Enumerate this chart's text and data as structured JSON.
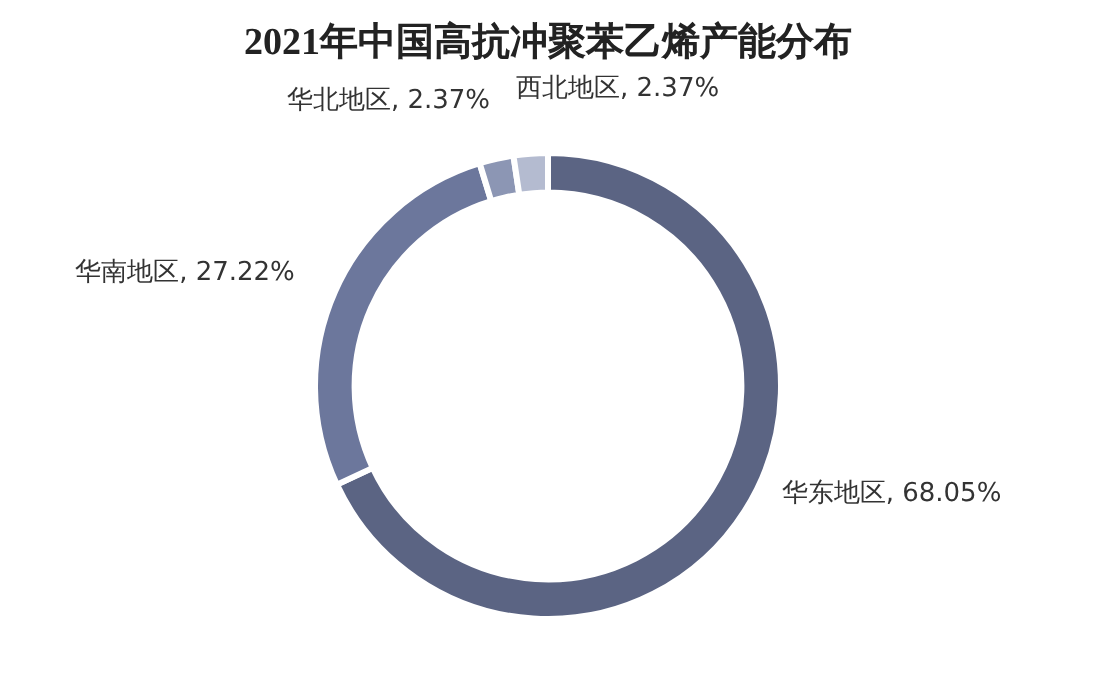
{
  "chart_data": {
    "type": "donut",
    "title": "2021年中国高抗冲聚苯乙烯产能分布",
    "categories": [
      "华东地区",
      "华南地区",
      "华北地区",
      "西北地区"
    ],
    "values": [
      68.05,
      27.22,
      2.37,
      2.37
    ],
    "value_labels": [
      "68.05%",
      "27.22%",
      "2.37%",
      "2.37%"
    ],
    "colors": [
      "#5b6483",
      "#6c779c",
      "#8c96b4",
      "#b4bbd0"
    ],
    "legend": false
  }
}
